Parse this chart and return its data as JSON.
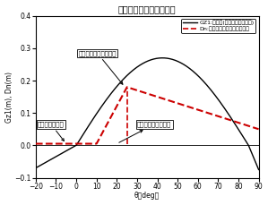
{
  "title": "復原力と傾斜モーメント",
  "xlabel": "θ（deg）",
  "ylabel": "Gz1(m), Dn(m)",
  "xlim": [
    -20,
    90
  ],
  "ylim": [
    -0.1,
    0.4
  ],
  "xticks": [
    -20,
    -10,
    0,
    10,
    20,
    30,
    40,
    50,
    60,
    70,
    80,
    90
  ],
  "yticks": [
    -0.1,
    0,
    0.1,
    0.2,
    0.3,
    0.4
  ],
  "legend1_label": "GZ1:復原力(自由水影響を考慮)",
  "legend2_label": "Dn:可動物による傾斜倒力てこ",
  "ann1": "コッドが左舷側へ移動",
  "ann2": "右舷側初期傾斜",
  "ann3": "網胴が左舷側へ移動",
  "gz_color": "#000000",
  "dn_color": "#cc0000",
  "gz_linewidth": 1.0,
  "dn_linewidth": 1.5,
  "title_fontsize": 7,
  "label_fontsize": 5.5,
  "tick_fontsize": 5.5,
  "ann_fontsize": 5.0,
  "legend_fontsize": 4.5
}
